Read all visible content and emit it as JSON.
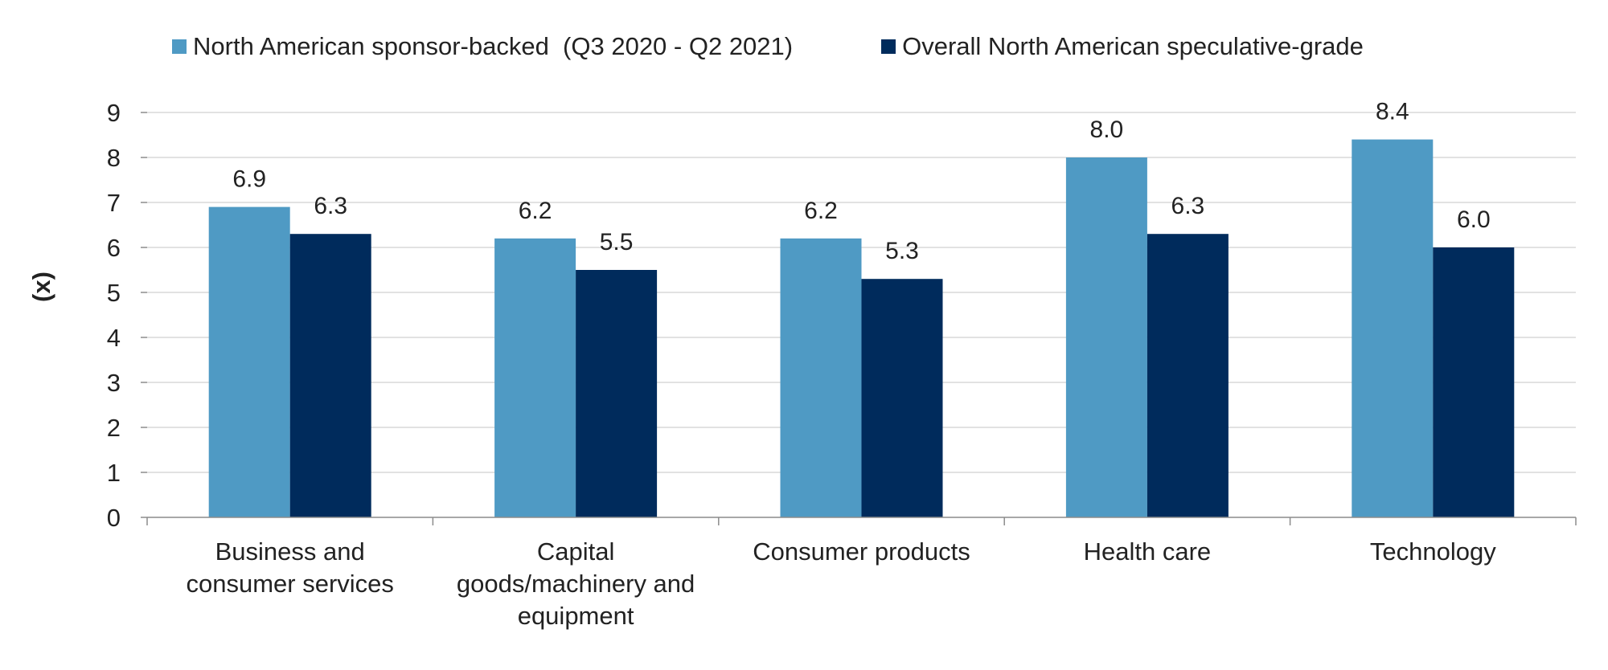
{
  "chart_data": {
    "type": "bar",
    "ylabel": "(x)",
    "ylim": [
      0,
      9
    ],
    "yticks": [
      0,
      1,
      2,
      3,
      4,
      5,
      6,
      7,
      8,
      9
    ],
    "grid": true,
    "legend_position": "top",
    "categories": [
      [
        "Business and",
        "consumer services"
      ],
      [
        "Capital",
        "goods/machinery and",
        "equipment"
      ],
      [
        "Consumer products"
      ],
      [
        "Health care"
      ],
      [
        "Technology"
      ]
    ],
    "series": [
      {
        "name": "North American sponsor-backed  (Q3 2020 - Q2 2021)",
        "color": "#4f9ac4",
        "values": [
          6.9,
          6.2,
          6.2,
          8.0,
          8.4
        ],
        "labels": [
          "6.9",
          "6.2",
          "6.2",
          "8.0",
          "8.4"
        ]
      },
      {
        "name": "Overall North American speculative-grade",
        "color": "#002b5c",
        "values": [
          6.3,
          5.5,
          5.3,
          6.3,
          6.0
        ],
        "labels": [
          "6.3",
          "5.5",
          "5.3",
          "6.3",
          "6.0"
        ]
      }
    ]
  }
}
